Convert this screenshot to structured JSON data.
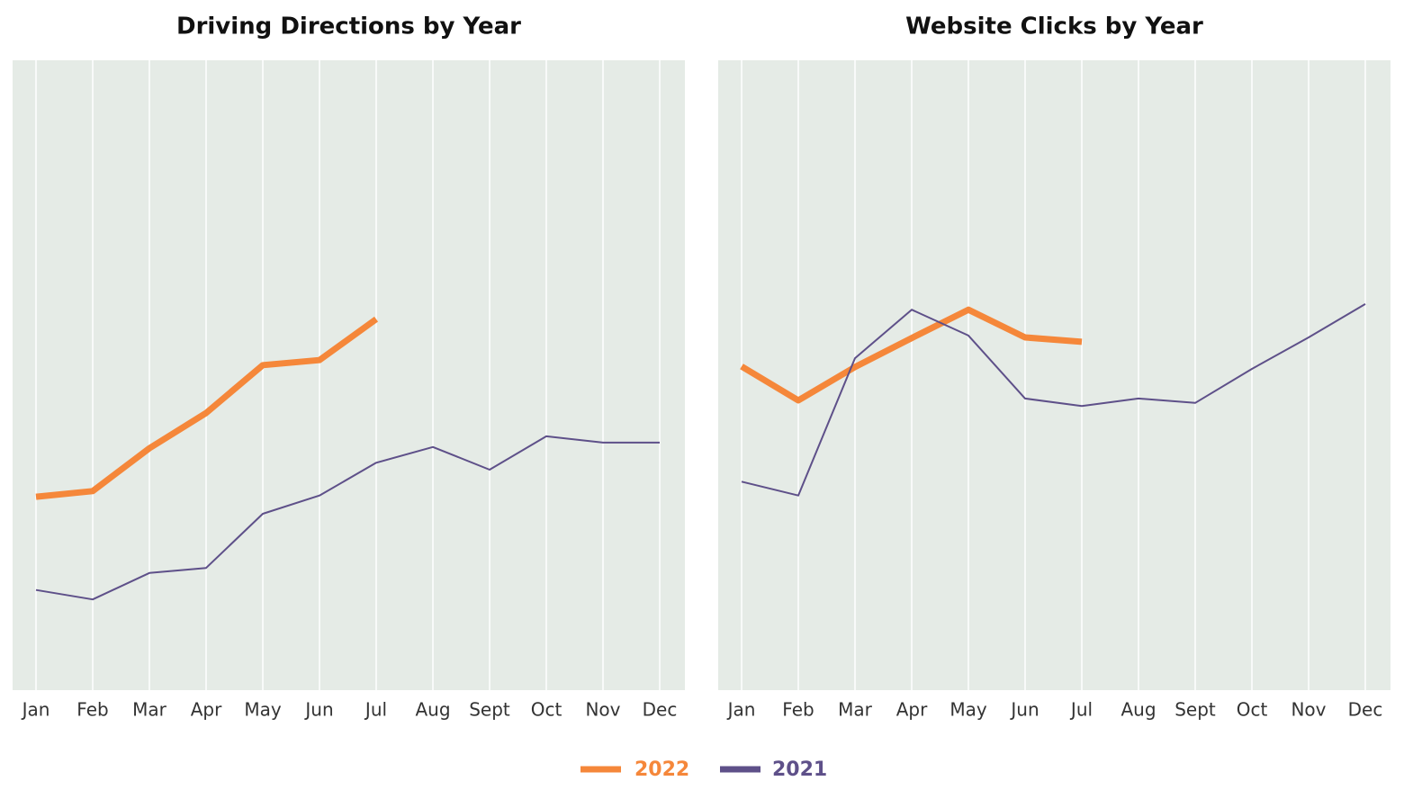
{
  "chart_data": [
    {
      "type": "line",
      "title": "Driving Directions by Year",
      "categories": [
        "Jan",
        "Feb",
        "Mar",
        "Apr",
        "May",
        "Jun",
        "Jul",
        "Aug",
        "Sept",
        "Oct",
        "Nov",
        "Dec"
      ],
      "series": [
        {
          "name": "2022",
          "color": "#f5873a",
          "values": [
            30.7,
            31.6,
            38.4,
            44,
            51.6,
            52.4,
            58.9,
            null,
            null,
            null,
            null,
            null
          ]
        },
        {
          "name": "2021",
          "color": "#5e5089",
          "values": [
            15.9,
            14.4,
            18.6,
            19.4,
            28,
            30.9,
            36.1,
            38.6,
            35,
            40.3,
            39.3,
            39.3
          ]
        }
      ],
      "ylim": [
        0,
        100
      ],
      "grid": true,
      "legend": "bottom"
    },
    {
      "type": "line",
      "title": "Website Clicks by Year",
      "categories": [
        "Jan",
        "Feb",
        "Mar",
        "Apr",
        "May",
        "Jun",
        "Jul",
        "Aug",
        "Sept",
        "Oct",
        "Nov",
        "Dec"
      ],
      "series": [
        {
          "name": "2022",
          "color": "#f5873a",
          "values": [
            51.4,
            46,
            51.3,
            55.9,
            60.4,
            56,
            55.3,
            null,
            null,
            null,
            null,
            null
          ]
        },
        {
          "name": "2021",
          "color": "#5e5089",
          "values": [
            33.1,
            30.9,
            52.7,
            60.4,
            56.3,
            46.3,
            45.1,
            46.3,
            45.6,
            51,
            56,
            61.3
          ]
        }
      ],
      "ylim": [
        0,
        100
      ],
      "grid": true,
      "legend": "bottom"
    }
  ]
}
